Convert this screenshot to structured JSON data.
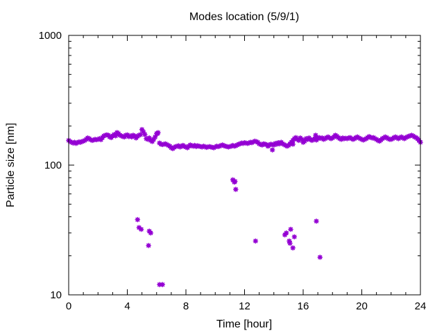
{
  "chart_data": {
    "type": "scatter",
    "title": "Modes location (5/9/1)",
    "xlabel": "Time [hour]",
    "ylabel": "Particle size [nm]",
    "xlim": [
      0,
      24
    ],
    "ylim": [
      10,
      1000
    ],
    "yscale": "log",
    "grid": false,
    "legend": "none",
    "marker_color": "#9400D3",
    "x_ticks": [
      {
        "value": 0,
        "label": "0"
      },
      {
        "value": 4,
        "label": "4"
      },
      {
        "value": 8,
        "label": "8"
      },
      {
        "value": 12,
        "label": "12"
      },
      {
        "value": 16,
        "label": "16"
      },
      {
        "value": 20,
        "label": "20"
      },
      {
        "value": 24,
        "label": "24"
      }
    ],
    "y_ticks": [
      {
        "value": 10,
        "label": "10"
      },
      {
        "value": 100,
        "label": "100"
      },
      {
        "value": 1000,
        "label": "1000"
      }
    ],
    "series": [
      {
        "points": [
          [
            0.0,
            155
          ],
          [
            0.1,
            152
          ],
          [
            0.2,
            150
          ],
          [
            0.3,
            148
          ],
          [
            0.4,
            150
          ],
          [
            0.5,
            147
          ],
          [
            0.6,
            149
          ],
          [
            0.7,
            151
          ],
          [
            0.8,
            150
          ],
          [
            0.9,
            152
          ],
          [
            1.0,
            153
          ],
          [
            1.1,
            155
          ],
          [
            1.2,
            158
          ],
          [
            1.3,
            162
          ],
          [
            1.4,
            160
          ],
          [
            1.5,
            157
          ],
          [
            1.6,
            155
          ],
          [
            1.7,
            156
          ],
          [
            1.8,
            158
          ],
          [
            1.9,
            157
          ],
          [
            2.0,
            158
          ],
          [
            2.1,
            160
          ],
          [
            2.2,
            157
          ],
          [
            2.3,
            163
          ],
          [
            2.4,
            168
          ],
          [
            2.5,
            170
          ],
          [
            2.6,
            171
          ],
          [
            2.7,
            170
          ],
          [
            2.8,
            165
          ],
          [
            2.9,
            163
          ],
          [
            3.0,
            168
          ],
          [
            3.1,
            172
          ],
          [
            3.2,
            168
          ],
          [
            3.3,
            178
          ],
          [
            3.4,
            175
          ],
          [
            3.5,
            170
          ],
          [
            3.6,
            168
          ],
          [
            3.7,
            166
          ],
          [
            3.8,
            165
          ],
          [
            3.9,
            170
          ],
          [
            4.0,
            171
          ],
          [
            4.1,
            166
          ],
          [
            4.2,
            168
          ],
          [
            4.3,
            165
          ],
          [
            4.4,
            170
          ],
          [
            4.5,
            168
          ],
          [
            4.6,
            162
          ],
          [
            4.7,
            167
          ],
          [
            4.8,
            170
          ],
          [
            4.9,
            172
          ],
          [
            5.0,
            188
          ],
          [
            5.1,
            180
          ],
          [
            5.2,
            172
          ],
          [
            5.3,
            160
          ],
          [
            5.4,
            158
          ],
          [
            5.5,
            162
          ],
          [
            5.6,
            155
          ],
          [
            5.7,
            152
          ],
          [
            5.8,
            158
          ],
          [
            5.9,
            165
          ],
          [
            6.0,
            175
          ],
          [
            6.1,
            178
          ],
          [
            6.2,
            148
          ],
          [
            6.3,
            145
          ],
          [
            6.4,
            144
          ],
          [
            6.5,
            145
          ],
          [
            6.6,
            146
          ],
          [
            6.7,
            144
          ],
          [
            6.8,
            142
          ],
          [
            6.9,
            140
          ],
          [
            7.0,
            136
          ],
          [
            7.1,
            134
          ],
          [
            7.2,
            137
          ],
          [
            7.3,
            139
          ],
          [
            7.4,
            140
          ],
          [
            7.5,
            141
          ],
          [
            7.6,
            138
          ],
          [
            7.7,
            140
          ],
          [
            7.8,
            142
          ],
          [
            7.9,
            139
          ],
          [
            8.0,
            138
          ],
          [
            8.1,
            136
          ],
          [
            8.2,
            140
          ],
          [
            8.3,
            143
          ],
          [
            8.4,
            141
          ],
          [
            8.5,
            140
          ],
          [
            8.6,
            142
          ],
          [
            8.7,
            139
          ],
          [
            8.8,
            141
          ],
          [
            8.9,
            140
          ],
          [
            9.0,
            139
          ],
          [
            9.1,
            138
          ],
          [
            9.2,
            140
          ],
          [
            9.3,
            139
          ],
          [
            9.4,
            137
          ],
          [
            9.5,
            138
          ],
          [
            9.6,
            139
          ],
          [
            9.7,
            138
          ],
          [
            9.8,
            137
          ],
          [
            9.9,
            136
          ],
          [
            10.0,
            138
          ],
          [
            10.1,
            140
          ],
          [
            10.2,
            139
          ],
          [
            10.3,
            140
          ],
          [
            10.4,
            142
          ],
          [
            10.5,
            143
          ],
          [
            10.6,
            141
          ],
          [
            10.7,
            140
          ],
          [
            10.8,
            139
          ],
          [
            10.9,
            138
          ],
          [
            11.0,
            139
          ],
          [
            11.1,
            140
          ],
          [
            11.2,
            142
          ],
          [
            11.3,
            140
          ],
          [
            11.4,
            141
          ],
          [
            11.5,
            143
          ],
          [
            11.6,
            145
          ],
          [
            11.7,
            146
          ],
          [
            11.8,
            148
          ],
          [
            11.9,
            147
          ],
          [
            12.0,
            149
          ],
          [
            12.1,
            148
          ],
          [
            12.2,
            147
          ],
          [
            12.3,
            148
          ],
          [
            12.4,
            150
          ],
          [
            12.5,
            149
          ],
          [
            12.6,
            151
          ],
          [
            12.7,
            153
          ],
          [
            12.8,
            152
          ],
          [
            12.9,
            150
          ],
          [
            13.0,
            146
          ],
          [
            13.1,
            144
          ],
          [
            13.2,
            143
          ],
          [
            13.3,
            146
          ],
          [
            13.4,
            145
          ],
          [
            13.5,
            144
          ],
          [
            13.6,
            140
          ],
          [
            13.7,
            143
          ],
          [
            13.8,
            145
          ],
          [
            13.9,
            144
          ],
          [
            14.0,
            143
          ],
          [
            14.1,
            147
          ],
          [
            14.2,
            145
          ],
          [
            14.3,
            149
          ],
          [
            14.4,
            146
          ],
          [
            14.5,
            150
          ],
          [
            14.6,
            146
          ],
          [
            14.7,
            144
          ],
          [
            14.8,
            142
          ],
          [
            14.9,
            140
          ],
          [
            15.0,
            142
          ],
          [
            15.1,
            146
          ],
          [
            15.2,
            150
          ],
          [
            15.3,
            155
          ],
          [
            15.4,
            160
          ],
          [
            15.5,
            163
          ],
          [
            15.6,
            158
          ],
          [
            15.7,
            155
          ],
          [
            15.8,
            162
          ],
          [
            15.9,
            158
          ],
          [
            16.0,
            150
          ],
          [
            16.1,
            153
          ],
          [
            16.2,
            160
          ],
          [
            16.3,
            158
          ],
          [
            16.4,
            162
          ],
          [
            16.5,
            157
          ],
          [
            16.6,
            155
          ],
          [
            16.7,
            158
          ],
          [
            16.8,
            160
          ],
          [
            16.9,
            156
          ],
          [
            17.0,
            160
          ],
          [
            17.1,
            163
          ],
          [
            17.2,
            161
          ],
          [
            17.3,
            162
          ],
          [
            17.4,
            158
          ],
          [
            17.5,
            160
          ],
          [
            17.6,
            163
          ],
          [
            17.7,
            165
          ],
          [
            17.8,
            162
          ],
          [
            17.9,
            160
          ],
          [
            18.0,
            162
          ],
          [
            18.1,
            165
          ],
          [
            18.2,
            168
          ],
          [
            18.3,
            167
          ],
          [
            18.4,
            163
          ],
          [
            18.5,
            160
          ],
          [
            18.6,
            158
          ],
          [
            18.7,
            162
          ],
          [
            18.8,
            160
          ],
          [
            18.9,
            161
          ],
          [
            19.0,
            160
          ],
          [
            19.1,
            162
          ],
          [
            19.2,
            163
          ],
          [
            19.3,
            160
          ],
          [
            19.4,
            158
          ],
          [
            19.5,
            160
          ],
          [
            19.6,
            163
          ],
          [
            19.7,
            165
          ],
          [
            19.8,
            162
          ],
          [
            19.9,
            160
          ],
          [
            20.0,
            158
          ],
          [
            20.1,
            156
          ],
          [
            20.2,
            158
          ],
          [
            20.3,
            160
          ],
          [
            20.4,
            163
          ],
          [
            20.5,
            166
          ],
          [
            20.6,
            164
          ],
          [
            20.7,
            162
          ],
          [
            20.8,
            163
          ],
          [
            20.9,
            160
          ],
          [
            21.0,
            158
          ],
          [
            21.1,
            155
          ],
          [
            21.2,
            153
          ],
          [
            21.3,
            156
          ],
          [
            21.4,
            160
          ],
          [
            21.5,
            162
          ],
          [
            21.6,
            165
          ],
          [
            21.7,
            163
          ],
          [
            21.8,
            160
          ],
          [
            21.9,
            158
          ],
          [
            22.0,
            158
          ],
          [
            22.1,
            160
          ],
          [
            22.2,
            163
          ],
          [
            22.3,
            165
          ],
          [
            22.4,
            162
          ],
          [
            22.5,
            160
          ],
          [
            22.6,
            163
          ],
          [
            22.7,
            165
          ],
          [
            22.8,
            162
          ],
          [
            22.9,
            160
          ],
          [
            23.0,
            163
          ],
          [
            23.1,
            165
          ],
          [
            23.2,
            167
          ],
          [
            23.3,
            168
          ],
          [
            23.4,
            170
          ],
          [
            23.5,
            168
          ],
          [
            23.6,
            165
          ],
          [
            23.7,
            163
          ],
          [
            23.8,
            160
          ],
          [
            23.9,
            155
          ],
          [
            24.0,
            150
          ],
          [
            3.3,
            178
          ],
          [
            6.05,
            175
          ],
          [
            15.3,
            145
          ],
          [
            16.85,
            170
          ],
          [
            18.2,
            170
          ],
          [
            13.9,
            131
          ],
          [
            4.7,
            38
          ],
          [
            4.8,
            33
          ],
          [
            4.95,
            32
          ],
          [
            5.45,
            24
          ],
          [
            5.5,
            31
          ],
          [
            5.6,
            30
          ],
          [
            6.2,
            12
          ],
          [
            6.4,
            12
          ],
          [
            11.2,
            77
          ],
          [
            11.3,
            74
          ],
          [
            11.35,
            75
          ],
          [
            11.4,
            65
          ],
          [
            12.75,
            26
          ],
          [
            14.75,
            29
          ],
          [
            14.85,
            30
          ],
          [
            15.05,
            26
          ],
          [
            15.1,
            25
          ],
          [
            15.15,
            32
          ],
          [
            15.3,
            23
          ],
          [
            15.4,
            28
          ],
          [
            16.9,
            37
          ],
          [
            17.15,
            19.5
          ]
        ]
      }
    ]
  }
}
